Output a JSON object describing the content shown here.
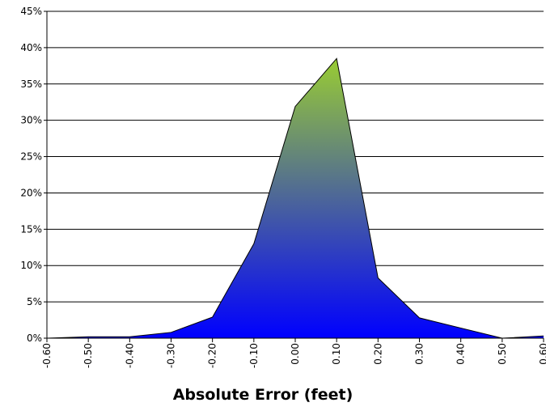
{
  "chart_data": {
    "type": "area",
    "x_label": "Absolute Error (feet)",
    "categories": [
      "-0.60",
      "-0.50",
      "-0.40",
      "-0.30",
      "-0.20",
      "-0.10",
      "0.00",
      "0.10",
      "0.20",
      "0.30",
      "0.40",
      "0.50",
      "0.60"
    ],
    "values": [
      0,
      0.2,
      0.2,
      0.8,
      2.9,
      13,
      31.9,
      38.5,
      8.3,
      2.8,
      1.4,
      0,
      0.3
    ],
    "color": [
      "#99cc33",
      "#0000ff"
    ],
    "ylim": [
      0,
      45
    ],
    "yticks": [
      {
        "value": 0,
        "label": "0%"
      },
      {
        "value": 5,
        "label": "5%"
      },
      {
        "value": 10,
        "label": "10%"
      },
      {
        "value": 15,
        "label": "15%"
      },
      {
        "value": 20,
        "label": "20%"
      },
      {
        "value": 25,
        "label": "25%"
      },
      {
        "value": 30,
        "label": "30%"
      },
      {
        "value": 35,
        "label": "35%"
      },
      {
        "value": 40,
        "label": "40%"
      },
      {
        "value": 45,
        "label": "45%"
      }
    ],
    "grid": true
  }
}
